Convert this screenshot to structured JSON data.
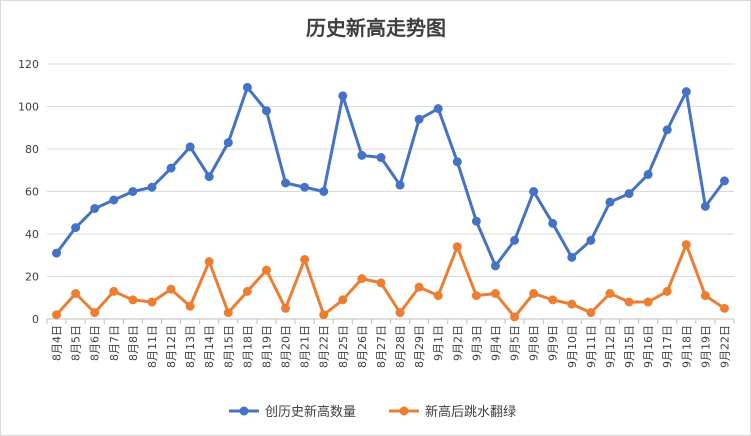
{
  "chart_data": {
    "type": "line",
    "title": "历史新高走势图",
    "xlabel": "",
    "ylabel": "",
    "ylim": [
      0,
      120
    ],
    "yticks": [
      0,
      20,
      40,
      60,
      80,
      100,
      120
    ],
    "grid": "horizontal",
    "legend_position": "bottom",
    "categories": [
      "8月4日",
      "8月5日",
      "8月6日",
      "8月7日",
      "8月8日",
      "8月11日",
      "8月12日",
      "8月13日",
      "8月14日",
      "8月15日",
      "8月18日",
      "8月19日",
      "8月20日",
      "8月21日",
      "8月22日",
      "8月25日",
      "8月26日",
      "8月27日",
      "8月28日",
      "8月29日",
      "9月1日",
      "9月2日",
      "9月3日",
      "9月4日",
      "9月5日",
      "9月8日",
      "9月9日",
      "9月10日",
      "9月11日",
      "9月12日",
      "9月15日",
      "9月16日",
      "9月17日",
      "9月18日",
      "9月19日",
      "9月22日"
    ],
    "series": [
      {
        "name": "创历史新高数量",
        "color": "#4472c4",
        "values": [
          31,
          43,
          52,
          56,
          60,
          62,
          71,
          81,
          67,
          83,
          109,
          98,
          64,
          62,
          60,
          105,
          77,
          76,
          63,
          94,
          99,
          74,
          46,
          25,
          37,
          60,
          45,
          29,
          37,
          55,
          59,
          68,
          89,
          107,
          53,
          65
        ]
      },
      {
        "name": "新高后跳水翻绿",
        "color": "#ed7d31",
        "values": [
          2,
          12,
          3,
          13,
          9,
          8,
          14,
          6,
          27,
          3,
          13,
          23,
          5,
          28,
          2,
          9,
          19,
          17,
          3,
          15,
          11,
          34,
          11,
          12,
          1,
          12,
          9,
          7,
          3,
          12,
          8,
          8,
          13,
          35,
          11,
          5
        ]
      }
    ]
  }
}
